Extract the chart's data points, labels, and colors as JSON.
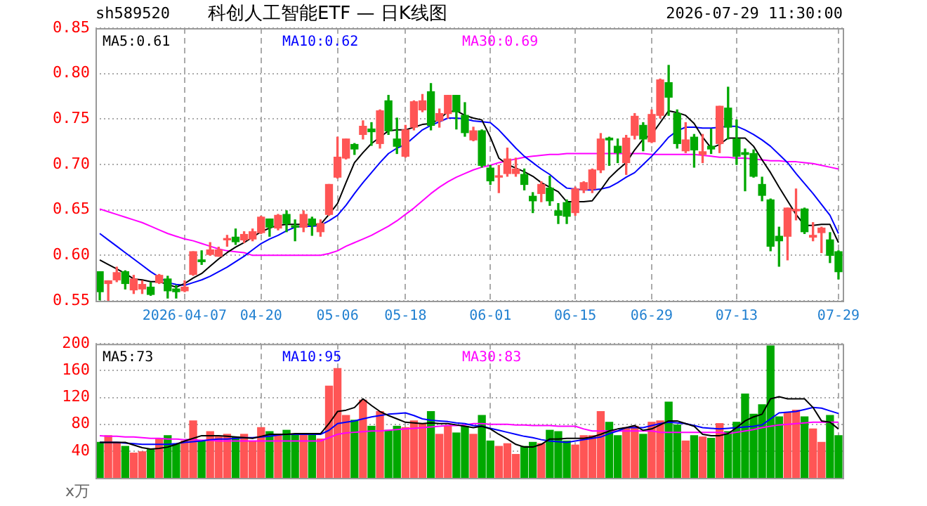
{
  "chart_data": [
    {
      "type": "candlestick",
      "title": "科创人工智能ETF — 日K线图",
      "annotations": [
        "sh589520",
        "2026-07-29 11:30:00"
      ],
      "categories": [
        null,
        null,
        null,
        null,
        null,
        null,
        null,
        null,
        null,
        null,
        "2026-04-07",
        null,
        null,
        null,
        null,
        null,
        null,
        null,
        null,
        "04-20",
        null,
        null,
        null,
        null,
        null,
        null,
        null,
        null,
        "05-06",
        null,
        null,
        null,
        null,
        null,
        null,
        null,
        "05-18",
        null,
        null,
        null,
        null,
        null,
        null,
        null,
        null,
        null,
        "06-01",
        null,
        null,
        null,
        null,
        null,
        null,
        null,
        null,
        null,
        "06-15",
        null,
        null,
        null,
        null,
        null,
        null,
        null,
        null,
        "06-29",
        null,
        null,
        null,
        null,
        null,
        null,
        null,
        null,
        null,
        "07-13",
        null,
        null,
        null,
        null,
        null,
        null,
        null,
        null,
        null,
        null,
        null,
        "07-29"
      ],
      "ohlc": [
        [
          0.582,
          0.582,
          0.551,
          0.56
        ],
        [
          0.569,
          0.572,
          0.55,
          0.572
        ],
        [
          0.573,
          0.587,
          0.571,
          0.581
        ],
        [
          0.582,
          0.583,
          0.563,
          0.569
        ],
        [
          0.562,
          0.578,
          0.558,
          0.574
        ],
        [
          0.563,
          0.572,
          0.558,
          0.568
        ],
        [
          0.565,
          0.57,
          0.556,
          0.557
        ],
        [
          0.57,
          0.579,
          0.569,
          0.578
        ],
        [
          0.574,
          0.577,
          0.553,
          0.561
        ],
        [
          0.563,
          0.567,
          0.553,
          0.56
        ],
        [
          0.561,
          0.572,
          0.56,
          0.565
        ],
        [
          0.579,
          0.604,
          0.578,
          0.604
        ],
        [
          0.595,
          0.605,
          0.59,
          0.593
        ],
        [
          0.601,
          0.614,
          0.6,
          0.606
        ],
        [
          0.599,
          0.609,
          0.599,
          0.606
        ],
        [
          0.617,
          0.622,
          0.61,
          0.618
        ],
        [
          0.62,
          0.629,
          0.612,
          0.615
        ],
        [
          0.617,
          0.626,
          0.614,
          0.623
        ],
        [
          0.618,
          0.629,
          0.616,
          0.626
        ],
        [
          0.625,
          0.643,
          0.624,
          0.642
        ],
        [
          0.64,
          0.64,
          0.621,
          0.631
        ],
        [
          0.63,
          0.645,
          0.628,
          0.644
        ],
        [
          0.645,
          0.649,
          0.626,
          0.635
        ],
        [
          0.632,
          0.639,
          0.616,
          0.631
        ],
        [
          0.631,
          0.649,
          0.626,
          0.645
        ],
        [
          0.64,
          0.642,
          0.622,
          0.633
        ],
        [
          0.626,
          0.639,
          0.621,
          0.635
        ],
        [
          0.645,
          0.678,
          0.644,
          0.678
        ],
        [
          0.686,
          0.73,
          0.685,
          0.708
        ],
        [
          0.707,
          0.728,
          0.706,
          0.728
        ],
        [
          0.722,
          0.723,
          0.711,
          0.717
        ],
        [
          0.733,
          0.748,
          0.728,
          0.742
        ],
        [
          0.739,
          0.746,
          0.721,
          0.736
        ],
        [
          0.723,
          0.76,
          0.718,
          0.759
        ],
        [
          0.77,
          0.776,
          0.733,
          0.737
        ],
        [
          0.728,
          0.751,
          0.712,
          0.72
        ],
        [
          0.709,
          0.743,
          0.708,
          0.738
        ],
        [
          0.741,
          0.77,
          0.738,
          0.769
        ],
        [
          0.76,
          0.777,
          0.758,
          0.77
        ],
        [
          0.78,
          0.789,
          0.738,
          0.743
        ],
        [
          0.748,
          0.761,
          0.741,
          0.756
        ],
        [
          0.756,
          0.776,
          0.751,
          0.776
        ],
        [
          0.776,
          0.776,
          0.739,
          0.758
        ],
        [
          0.754,
          0.768,
          0.731,
          0.735
        ],
        [
          0.727,
          0.741,
          0.726,
          0.737
        ],
        [
          0.737,
          0.738,
          0.697,
          0.699
        ],
        [
          0.696,
          0.699,
          0.678,
          0.682
        ],
        [
          0.686,
          0.699,
          0.669,
          0.687
        ],
        [
          0.69,
          0.718,
          0.687,
          0.706
        ],
        [
          0.69,
          0.707,
          0.687,
          0.695
        ],
        [
          0.689,
          0.695,
          0.672,
          0.678
        ],
        [
          0.665,
          0.669,
          0.647,
          0.66
        ],
        [
          0.668,
          0.681,
          0.659,
          0.678
        ],
        [
          0.674,
          0.687,
          0.655,
          0.66
        ],
        [
          0.649,
          0.657,
          0.635,
          0.644
        ],
        [
          0.658,
          0.661,
          0.635,
          0.643
        ],
        [
          0.647,
          0.675,
          0.644,
          0.673
        ],
        [
          0.672,
          0.681,
          0.669,
          0.68
        ],
        [
          0.673,
          0.695,
          0.669,
          0.694
        ],
        [
          0.694,
          0.734,
          0.691,
          0.728
        ],
        [
          0.729,
          0.73,
          0.699,
          0.727
        ],
        [
          0.72,
          0.728,
          0.702,
          0.713
        ],
        [
          0.702,
          0.732,
          0.689,
          0.729
        ],
        [
          0.732,
          0.756,
          0.728,
          0.753
        ],
        [
          0.743,
          0.746,
          0.715,
          0.728
        ],
        [
          0.725,
          0.76,
          0.724,
          0.755
        ],
        [
          0.754,
          0.794,
          0.751,
          0.793
        ],
        [
          0.79,
          0.809,
          0.754,
          0.774
        ],
        [
          0.756,
          0.76,
          0.718,
          0.723
        ],
        [
          0.715,
          0.746,
          0.713,
          0.727
        ],
        [
          0.73,
          0.733,
          0.697,
          0.716
        ],
        [
          0.711,
          0.733,
          0.702,
          0.714
        ],
        [
          0.72,
          0.739,
          0.712,
          0.717
        ],
        [
          0.723,
          0.764,
          0.713,
          0.764
        ],
        [
          0.762,
          0.785,
          0.728,
          0.741
        ],
        [
          0.728,
          0.749,
          0.7,
          0.709
        ],
        [
          0.713,
          0.717,
          0.671,
          0.711
        ],
        [
          0.712,
          0.716,
          0.686,
          0.687
        ],
        [
          0.678,
          0.686,
          0.66,
          0.666
        ],
        [
          0.661,
          0.662,
          0.605,
          0.61
        ],
        [
          0.621,
          0.631,
          0.588,
          0.616
        ],
        [
          0.621,
          0.652,
          0.595,
          0.652
        ],
        [
          0.649,
          0.673,
          0.639,
          0.65
        ],
        [
          0.651,
          0.652,
          0.624,
          0.626
        ],
        [
          0.62,
          0.636,
          0.616,
          0.622
        ],
        [
          0.625,
          0.631,
          0.603,
          0.63
        ],
        [
          0.617,
          0.625,
          0.592,
          0.6
        ],
        [
          0.604,
          0.605,
          0.574,
          0.582
        ]
      ],
      "colors": [
        "#00a800",
        "#ff5555",
        "#ff5555",
        "#00a800",
        "#ff5555",
        "#ff5555",
        "#00a800",
        "#ff5555",
        "#00a800",
        "#00a800",
        "#ff5555",
        "#ff5555",
        "#00a800",
        "#ff5555",
        "#ff5555",
        "#ff5555",
        "#00a800",
        "#ff5555",
        "#ff5555",
        "#ff5555",
        "#00a800",
        "#ff5555",
        "#00a800",
        "#00a800",
        "#ff5555",
        "#00a800",
        "#ff5555",
        "#ff5555",
        "#ff5555",
        "#ff5555",
        "#00a800",
        "#ff5555",
        "#00a800",
        "#ff5555",
        "#00a800",
        "#00a800",
        "#ff5555",
        "#ff5555",
        "#ff5555",
        "#00a800",
        "#ff5555",
        "#ff5555",
        "#00a800",
        "#00a800",
        "#ff5555",
        "#00a800",
        "#00a800",
        "#ff5555",
        "#ff5555",
        "#ff5555",
        "#00a800",
        "#00a800",
        "#ff5555",
        "#00a800",
        "#00a800",
        "#00a800",
        "#ff5555",
        "#ff5555",
        "#ff5555",
        "#ff5555",
        "#00a800",
        "#00a800",
        "#ff5555",
        "#ff5555",
        "#00a800",
        "#ff5555",
        "#ff5555",
        "#00a800",
        "#00a800",
        "#ff5555",
        "#00a800",
        "#ff5555",
        "#00a800",
        "#ff5555",
        "#00a800",
        "#00a800",
        "#00a800",
        "#00a800",
        "#00a800",
        "#00a800",
        "#00a800",
        "#ff5555",
        "#ff5555",
        "#00a800",
        "#ff5555",
        "#ff5555",
        "#00a800",
        "#00a800"
      ],
      "series": [
        {
          "type": "line",
          "name": "MA5:0.61",
          "color": "#000000",
          "values": [
            0.595,
            0.59,
            0.585,
            0.58,
            0.574,
            0.573,
            0.571,
            0.571,
            0.568,
            0.565,
            0.569,
            0.575,
            0.58,
            0.588,
            0.596,
            0.603,
            0.609,
            0.614,
            0.62,
            0.626,
            0.63,
            0.633,
            0.634,
            0.634,
            0.634,
            0.634,
            0.634,
            0.645,
            0.657,
            0.68,
            0.702,
            0.713,
            0.723,
            0.73,
            0.737,
            0.738,
            0.738,
            0.741,
            0.744,
            0.745,
            0.75,
            0.758,
            0.759,
            0.754,
            0.751,
            0.749,
            0.73,
            0.707,
            0.7,
            0.696,
            0.692,
            0.687,
            0.68,
            0.675,
            0.67,
            0.659,
            0.659,
            0.659,
            0.66,
            0.672,
            0.685,
            0.694,
            0.702,
            0.716,
            0.728,
            0.733,
            0.746,
            0.759,
            0.757,
            0.754,
            0.745,
            0.73,
            0.718,
            0.722,
            0.729,
            0.729,
            0.729,
            0.72,
            0.705,
            0.691,
            0.675,
            0.66,
            0.645,
            0.633,
            0.633,
            0.634,
            0.634,
            0.614
          ]
        },
        {
          "type": "line",
          "name": "MA10:0.62",
          "color": "#0000ff",
          "values": [
            0.624,
            0.617,
            0.61,
            0.603,
            0.596,
            0.589,
            0.582,
            0.576,
            0.57,
            0.568,
            0.567,
            0.57,
            0.573,
            0.577,
            0.582,
            0.587,
            0.593,
            0.599,
            0.606,
            0.613,
            0.618,
            0.622,
            0.627,
            0.631,
            0.632,
            0.632,
            0.633,
            0.638,
            0.644,
            0.655,
            0.668,
            0.68,
            0.691,
            0.702,
            0.712,
            0.718,
            0.722,
            0.73,
            0.738,
            0.743,
            0.747,
            0.751,
            0.751,
            0.75,
            0.748,
            0.747,
            0.746,
            0.738,
            0.728,
            0.718,
            0.709,
            0.702,
            0.695,
            0.689,
            0.681,
            0.674,
            0.673,
            0.672,
            0.672,
            0.673,
            0.675,
            0.68,
            0.686,
            0.691,
            0.7,
            0.709,
            0.719,
            0.73,
            0.737,
            0.741,
            0.741,
            0.74,
            0.74,
            0.741,
            0.742,
            0.742,
            0.738,
            0.733,
            0.727,
            0.72,
            0.711,
            0.702,
            0.69,
            0.679,
            0.668,
            0.656,
            0.644,
            0.624
          ]
        },
        {
          "type": "line",
          "name": "MA30:0.69",
          "color": "#ff00ff",
          "values": [
            0.651,
            0.648,
            0.645,
            0.642,
            0.639,
            0.636,
            0.632,
            0.628,
            0.624,
            0.621,
            0.618,
            0.616,
            0.613,
            0.61,
            0.607,
            0.605,
            0.604,
            0.603,
            0.6,
            0.6,
            0.6,
            0.6,
            0.6,
            0.6,
            0.6,
            0.6,
            0.6,
            0.602,
            0.605,
            0.61,
            0.614,
            0.618,
            0.622,
            0.627,
            0.632,
            0.638,
            0.645,
            0.652,
            0.66,
            0.668,
            0.675,
            0.681,
            0.686,
            0.69,
            0.694,
            0.697,
            0.699,
            0.702,
            0.704,
            0.706,
            0.708,
            0.709,
            0.71,
            0.711,
            0.711,
            0.712,
            0.712,
            0.712,
            0.712,
            0.712,
            0.712,
            0.712,
            0.712,
            0.712,
            0.712,
            0.711,
            0.711,
            0.711,
            0.711,
            0.711,
            0.711,
            0.71,
            0.709,
            0.708,
            0.708,
            0.707,
            0.707,
            0.706,
            0.705,
            0.704,
            0.704,
            0.703,
            0.703,
            0.702,
            0.701,
            0.699,
            0.697,
            0.695
          ]
        }
      ],
      "ylim": [
        0.55,
        0.85
      ],
      "yticks": [
        0.55,
        {
          "value": 0.6,
          "label": "0.60"
        },
        0.65,
        {
          "value": 0.7,
          "label": "0.70"
        },
        0.75,
        {
          "value": 0.8,
          "label": "0.80"
        },
        0.85
      ],
      "grid": true,
      "legend": "top"
    },
    {
      "type": "bar",
      "annotations": [
        "x万"
      ],
      "tick_labels": "y",
      "categories": [
        null,
        null,
        null,
        null,
        null,
        null,
        null,
        null,
        null,
        null,
        null,
        null,
        null,
        null,
        null,
        null,
        null,
        null,
        null,
        null,
        null,
        null,
        null,
        null,
        null,
        null,
        null,
        null,
        null,
        null,
        null,
        null,
        null,
        null,
        null,
        null,
        null,
        null,
        null,
        null,
        null,
        null,
        null,
        null,
        null,
        null,
        null,
        null,
        null,
        null,
        null,
        null,
        null,
        null,
        null,
        null,
        null,
        null,
        null,
        null,
        null,
        null,
        null,
        null,
        null,
        null,
        null,
        null,
        null,
        null,
        null,
        null,
        null,
        null,
        null,
        null,
        null,
        null,
        null,
        null,
        null,
        null,
        null,
        null,
        null,
        null,
        null,
        null
      ],
      "series": [
        {
          "type": "bar",
          "values": [
            53,
            63,
            53,
            47,
            37,
            39,
            43,
            59,
            63,
            50,
            55,
            85,
            55,
            69,
            61,
            65,
            61,
            65,
            54,
            75,
            69,
            65,
            71,
            65,
            65,
            65,
            58,
            137,
            163,
            93,
            86,
            116,
            77,
            99,
            71,
            77,
            75,
            85,
            81,
            99,
            65,
            77,
            67,
            77,
            65,
            93,
            55,
            47,
            51,
            35,
            47,
            53,
            51,
            71,
            69,
            55,
            49,
            63,
            63,
            99,
            83,
            63,
            75,
            77,
            65,
            83,
            85,
            113,
            79,
            55,
            63,
            61,
            59,
            81,
            69,
            83,
            125,
            95,
            109,
            197,
            91,
            97,
            101,
            91,
            73,
            53,
            93,
            63
          ],
          "colors": [
            "#00a800",
            "#ff5555",
            "#ff5555",
            "#00a800",
            "#ff5555",
            "#ff5555",
            "#00a800",
            "#ff5555",
            "#00a800",
            "#00a800",
            "#ff5555",
            "#ff5555",
            "#00a800",
            "#ff5555",
            "#ff5555",
            "#ff5555",
            "#00a800",
            "#ff5555",
            "#ff5555",
            "#ff5555",
            "#00a800",
            "#ff5555",
            "#00a800",
            "#00a800",
            "#ff5555",
            "#00a800",
            "#ff5555",
            "#ff5555",
            "#ff5555",
            "#ff5555",
            "#00a800",
            "#ff5555",
            "#00a800",
            "#ff5555",
            "#00a800",
            "#00a800",
            "#ff5555",
            "#ff5555",
            "#ff5555",
            "#00a800",
            "#ff5555",
            "#ff5555",
            "#00a800",
            "#00a800",
            "#ff5555",
            "#00a800",
            "#00a800",
            "#ff5555",
            "#ff5555",
            "#ff5555",
            "#00a800",
            "#00a800",
            "#ff5555",
            "#00a800",
            "#00a800",
            "#00a800",
            "#ff5555",
            "#ff5555",
            "#ff5555",
            "#ff5555",
            "#00a800",
            "#00a800",
            "#ff5555",
            "#ff5555",
            "#00a800",
            "#ff5555",
            "#ff5555",
            "#00a800",
            "#00a800",
            "#ff5555",
            "#00a800",
            "#ff5555",
            "#00a800",
            "#ff5555",
            "#00a800",
            "#00a800",
            "#00a800",
            "#00a800",
            "#00a800",
            "#00a800",
            "#00a800",
            "#ff5555",
            "#ff5555",
            "#00a800",
            "#ff5555",
            "#ff5555",
            "#00a800",
            "#00a800"
          ]
        },
        {
          "type": "line",
          "name": "MA5:73",
          "color": "#000000",
          "values": [
            53,
            53,
            53,
            53,
            49,
            45,
            43,
            44,
            46,
            50,
            55,
            59,
            63,
            63,
            63,
            62,
            61,
            60,
            59,
            62,
            65,
            65,
            65,
            66,
            66,
            66,
            66,
            81,
            99,
            101,
            105,
            118,
            108,
            99,
            93,
            88,
            83,
            82,
            81,
            82,
            81,
            81,
            79,
            77,
            75,
            77,
            73,
            65,
            58,
            50,
            46,
            46,
            50,
            58,
            58,
            59,
            59,
            59,
            61,
            65,
            70,
            73,
            75,
            78,
            71,
            73,
            79,
            85,
            85,
            81,
            77,
            65,
            63,
            63,
            66,
            75,
            85,
            91,
            95,
            118,
            121,
            118,
            118,
            118,
            105,
            85,
            83,
            73
          ]
        },
        {
          "type": "line",
          "name": "MA10:95",
          "color": "#0000ff",
          "values": [
            53,
            53,
            53,
            52,
            51,
            50,
            50,
            50,
            50,
            51,
            53,
            54,
            55,
            57,
            58,
            58,
            59,
            60,
            60,
            61,
            62,
            64,
            65,
            65,
            65,
            65,
            65,
            71,
            81,
            83,
            85,
            88,
            91,
            93,
            95,
            96,
            97,
            93,
            88,
            86,
            85,
            84,
            82,
            81,
            78,
            77,
            74,
            71,
            68,
            65,
            62,
            60,
            57,
            55,
            54,
            53,
            55,
            57,
            59,
            61,
            66,
            70,
            75,
            75,
            75,
            78,
            81,
            83,
            82,
            81,
            78,
            75,
            74,
            73,
            74,
            75,
            76,
            77,
            79,
            88,
            97,
            98,
            99,
            102,
            105,
            104,
            100,
            96
          ]
        },
        {
          "type": "line",
          "name": "MA30:83",
          "color": "#ff00ff",
          "values": [
            63,
            62,
            62,
            61,
            61,
            60,
            59,
            59,
            58,
            58,
            57,
            57,
            56,
            56,
            55,
            55,
            55,
            55,
            55,
            55,
            55,
            55,
            55,
            55,
            55,
            55,
            55,
            60,
            65,
            67,
            68,
            69,
            70,
            70,
            71,
            72,
            73,
            74,
            75,
            76,
            77,
            78,
            78,
            79,
            81,
            81,
            80,
            80,
            80,
            79,
            79,
            78,
            78,
            78,
            77,
            77,
            77,
            73,
            70,
            70,
            70,
            70,
            70,
            70,
            70,
            70,
            68,
            68,
            68,
            68,
            68,
            68,
            68,
            68,
            66,
            68,
            70,
            72,
            75,
            77,
            79,
            80,
            81,
            82,
            83,
            83,
            83,
            83
          ]
        }
      ],
      "ylim": [
        0,
        200
      ],
      "yticks": [
        40,
        80,
        120,
        160,
        200
      ],
      "grid": true,
      "legend": "top"
    }
  ]
}
